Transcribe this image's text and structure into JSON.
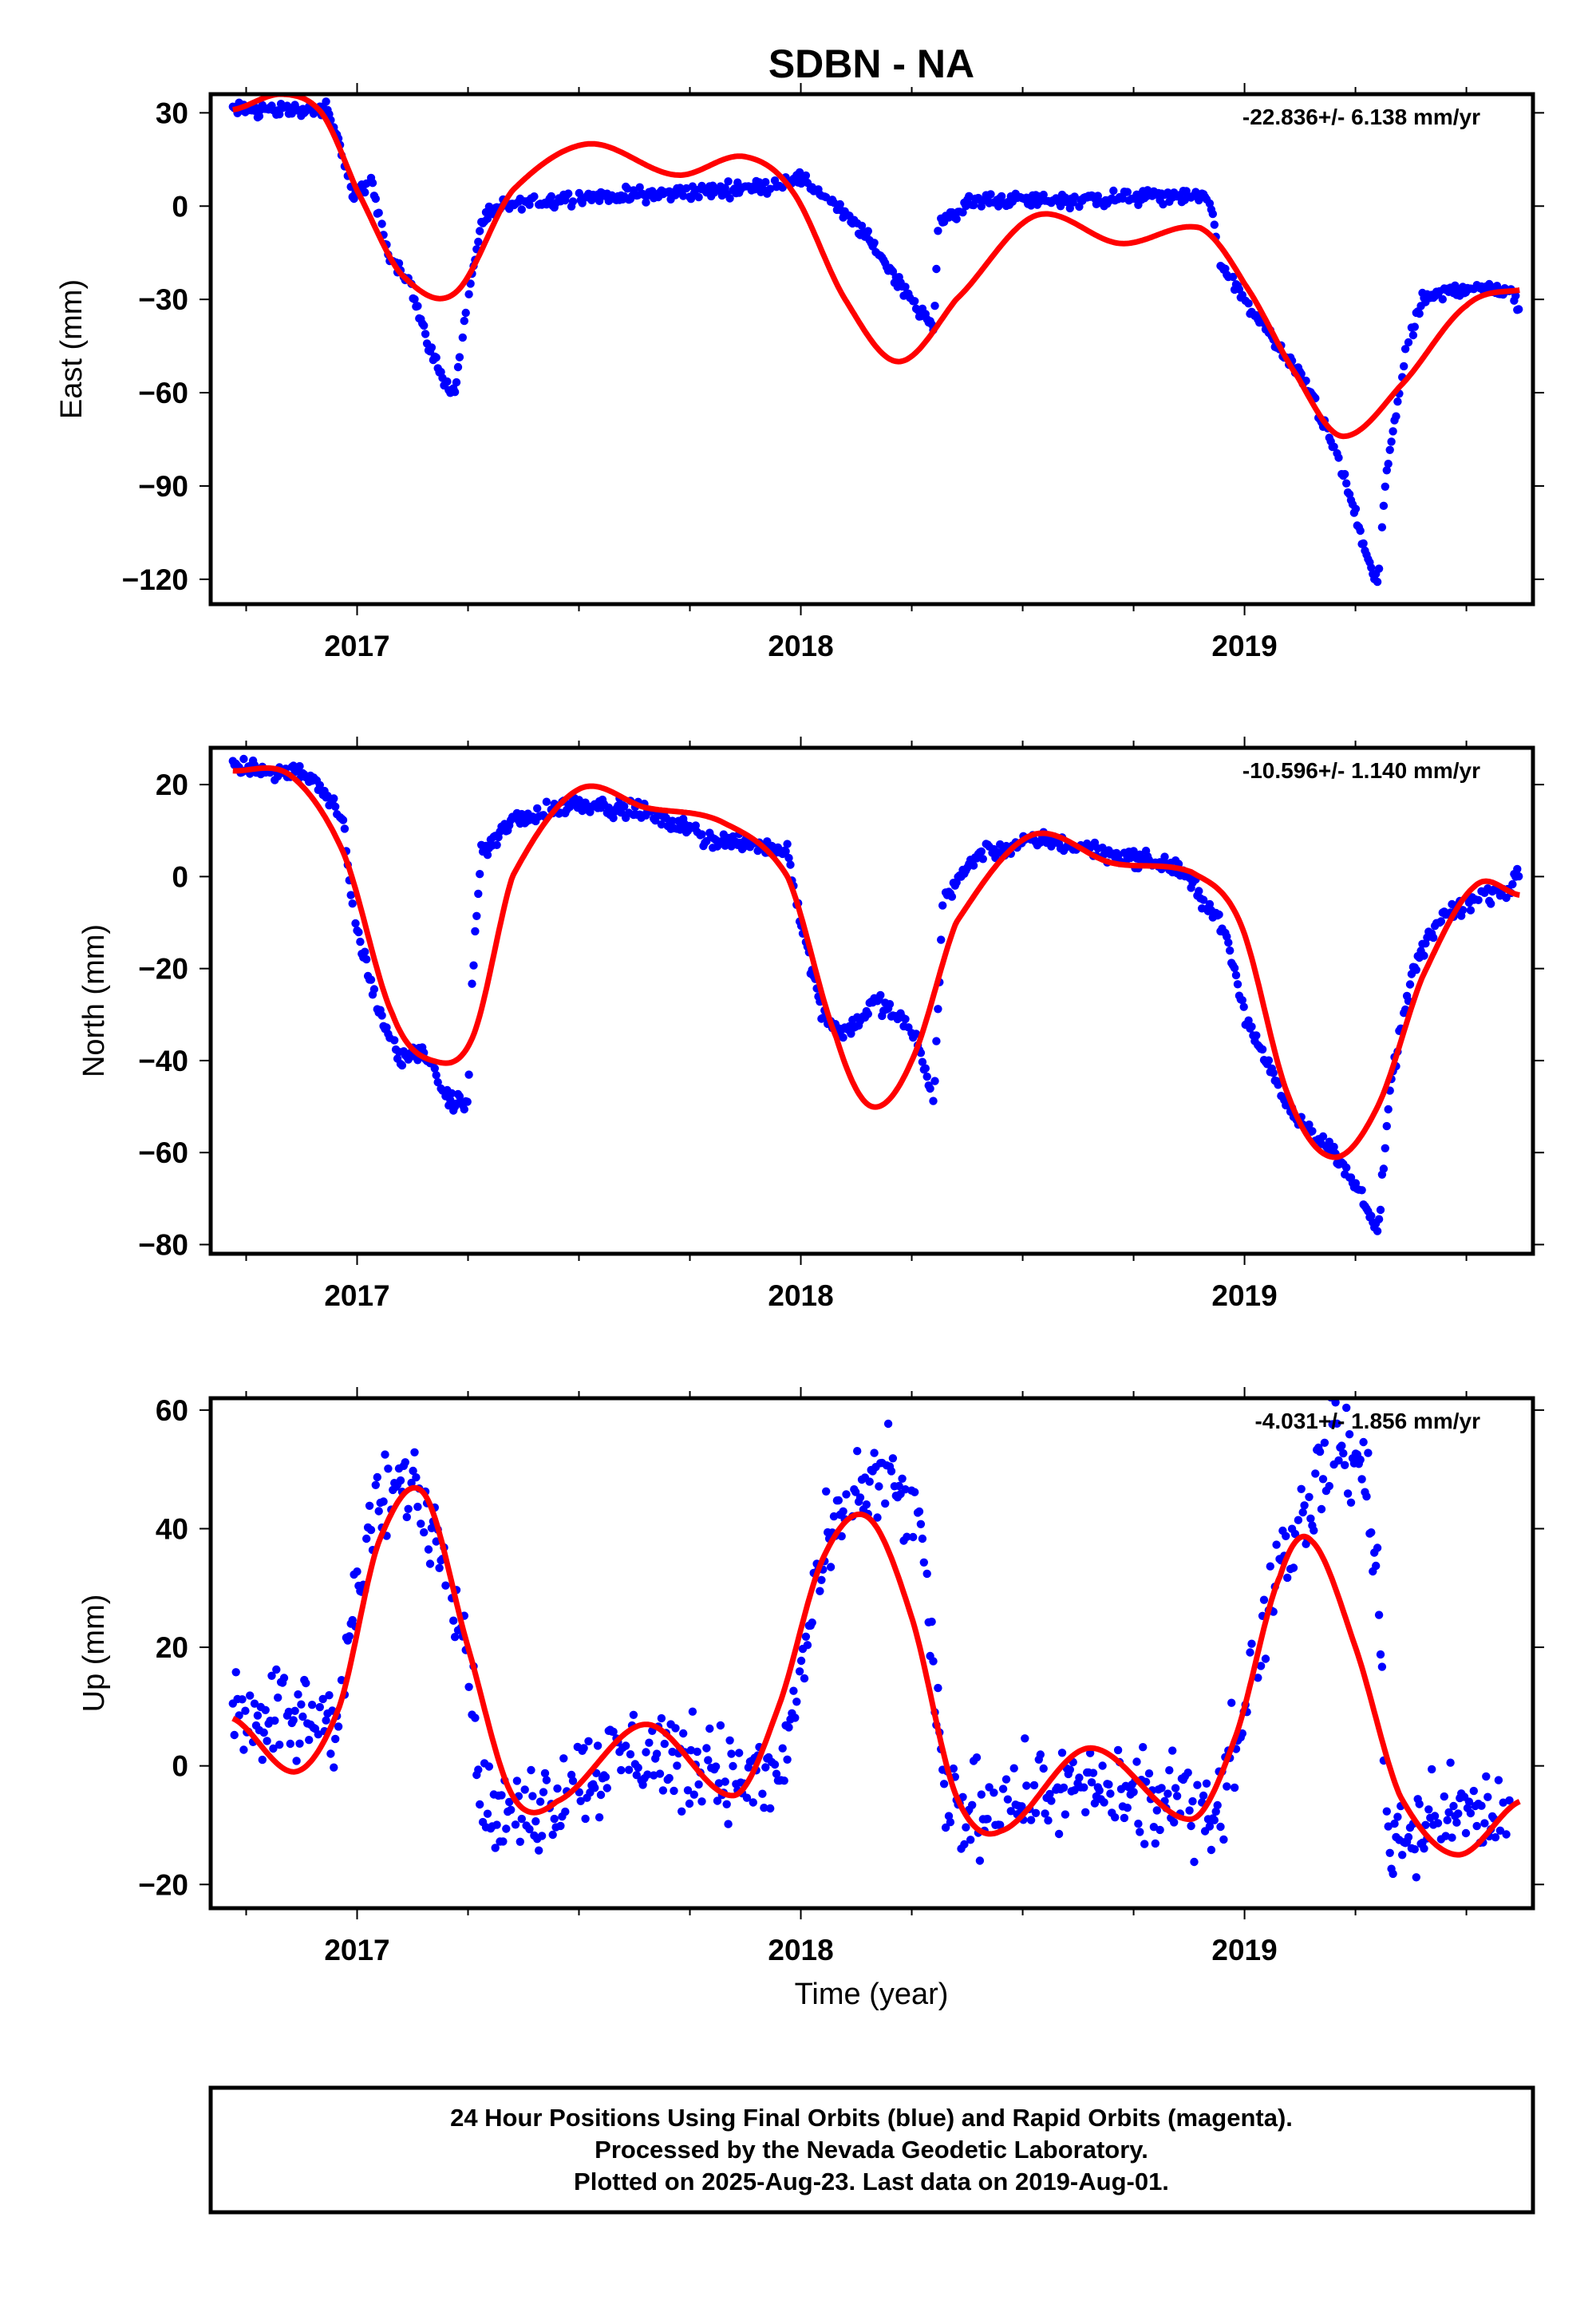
{
  "title": "SDBN - NA",
  "x_axis_label": "Time (year)",
  "colors": {
    "points": "#0000ff",
    "model": "#ff0000",
    "frame": "#000000"
  },
  "footer_lines": [
    "24 Hour Positions Using Final Orbits (blue) and Rapid Orbits (magenta).",
    "Processed by the Nevada Geodetic Laboratory.",
    "Plotted on 2025-Aug-23. Last data on 2019-Aug-01."
  ],
  "chart_data": [
    {
      "type": "scatter",
      "ylabel": "East (mm)",
      "rate_text": "-22.836+/- 6.138 mm/yr",
      "xlim": [
        2016.67,
        2019.65
      ],
      "ylim": [
        -128,
        36
      ],
      "yticks": [
        30,
        0,
        -30,
        -60,
        -90,
        -120
      ],
      "ytick_labels": [
        "30",
        "0",
        "−30",
        "−60",
        "−90",
        "−120"
      ],
      "xticks": [
        2017,
        2018,
        2019
      ],
      "xtick_labels": [
        "2017",
        "2018",
        "2019"
      ],
      "observations_knots": [
        [
          2016.72,
          31
        ],
        [
          2016.85,
          31
        ],
        [
          2016.93,
          31
        ],
        [
          2016.96,
          20
        ],
        [
          2016.99,
          3
        ],
        [
          2017.03,
          8
        ],
        [
          2017.07,
          -15
        ],
        [
          2017.12,
          -25
        ],
        [
          2017.15,
          -40
        ],
        [
          2017.19,
          -55
        ],
        [
          2017.22,
          -60
        ],
        [
          2017.25,
          -30
        ],
        [
          2017.28,
          -5
        ],
        [
          2017.33,
          0
        ],
        [
          2017.5,
          3
        ],
        [
          2017.7,
          4
        ],
        [
          2017.9,
          6
        ],
        [
          2018.0,
          9
        ],
        [
          2018.08,
          0
        ],
        [
          2018.15,
          -10
        ],
        [
          2018.2,
          -20
        ],
        [
          2018.25,
          -30
        ],
        [
          2018.3,
          -40
        ],
        [
          2018.31,
          -5
        ],
        [
          2018.4,
          2
        ],
        [
          2018.6,
          2
        ],
        [
          2018.8,
          3
        ],
        [
          2018.92,
          3
        ],
        [
          2018.95,
          -20
        ],
        [
          2019.05,
          -40
        ],
        [
          2019.15,
          -60
        ],
        [
          2019.22,
          -85
        ],
        [
          2019.27,
          -110
        ],
        [
          2019.3,
          -122
        ],
        [
          2019.32,
          -85
        ],
        [
          2019.36,
          -50
        ],
        [
          2019.4,
          -30
        ],
        [
          2019.5,
          -26
        ],
        [
          2019.6,
          -27
        ],
        [
          2019.62,
          -34
        ]
      ],
      "model_knots": [
        [
          2016.72,
          31
        ],
        [
          2016.83,
          36
        ],
        [
          2016.92,
          30
        ],
        [
          2017.0,
          5
        ],
        [
          2017.1,
          -22
        ],
        [
          2017.22,
          -28
        ],
        [
          2017.35,
          5
        ],
        [
          2017.52,
          20
        ],
        [
          2017.72,
          10
        ],
        [
          2017.87,
          16
        ],
        [
          2017.98,
          5
        ],
        [
          2018.1,
          -30
        ],
        [
          2018.22,
          -50
        ],
        [
          2018.35,
          -30
        ],
        [
          2018.53,
          -3
        ],
        [
          2018.72,
          -12
        ],
        [
          2018.9,
          -7
        ],
        [
          2019.0,
          -25
        ],
        [
          2019.12,
          -55
        ],
        [
          2019.22,
          -74
        ],
        [
          2019.35,
          -58
        ],
        [
          2019.5,
          -32
        ],
        [
          2019.62,
          -27
        ]
      ]
    },
    {
      "type": "scatter",
      "ylabel": "North (mm)",
      "rate_text": "-10.596+/- 1.140 mm/yr",
      "xlim": [
        2016.67,
        2019.65
      ],
      "ylim": [
        -82,
        28
      ],
      "yticks": [
        20,
        0,
        -20,
        -40,
        -60,
        -80
      ],
      "ytick_labels": [
        "20",
        "0",
        "−20",
        "−40",
        "−60",
        "−80"
      ],
      "xticks": [
        2017,
        2018,
        2019
      ],
      "xtick_labels": [
        "2017",
        "2018",
        "2019"
      ],
      "observations_knots": [
        [
          2016.72,
          24
        ],
        [
          2016.9,
          22
        ],
        [
          2016.97,
          12
        ],
        [
          2016.99,
          -8
        ],
        [
          2017.05,
          -30
        ],
        [
          2017.1,
          -40
        ],
        [
          2017.15,
          -38
        ],
        [
          2017.2,
          -48
        ],
        [
          2017.25,
          -50
        ],
        [
          2017.26,
          -20
        ],
        [
          2017.28,
          5
        ],
        [
          2017.35,
          12
        ],
        [
          2017.5,
          16
        ],
        [
          2017.65,
          14
        ],
        [
          2017.8,
          8
        ],
        [
          2017.97,
          6
        ],
        [
          2018.0,
          -10
        ],
        [
          2018.05,
          -30
        ],
        [
          2018.1,
          -34
        ],
        [
          2018.17,
          -27
        ],
        [
          2018.25,
          -33
        ],
        [
          2018.3,
          -48
        ],
        [
          2018.32,
          -5
        ],
        [
          2018.4,
          5
        ],
        [
          2018.55,
          8
        ],
        [
          2018.7,
          5
        ],
        [
          2018.85,
          2
        ],
        [
          2018.95,
          -10
        ],
        [
          2019.0,
          -30
        ],
        [
          2019.1,
          -50
        ],
        [
          2019.2,
          -60
        ],
        [
          2019.27,
          -70
        ],
        [
          2019.3,
          -78
        ],
        [
          2019.33,
          -45
        ],
        [
          2019.38,
          -20
        ],
        [
          2019.45,
          -8
        ],
        [
          2019.55,
          -4
        ],
        [
          2019.6,
          -3
        ],
        [
          2019.62,
          1
        ]
      ],
      "model_knots": [
        [
          2016.72,
          23
        ],
        [
          2016.85,
          22
        ],
        [
          2016.97,
          5
        ],
        [
          2017.08,
          -30
        ],
        [
          2017.17,
          -40
        ],
        [
          2017.26,
          -35
        ],
        [
          2017.35,
          0
        ],
        [
          2017.5,
          19
        ],
        [
          2017.65,
          15
        ],
        [
          2017.82,
          12
        ],
        [
          2017.97,
          0
        ],
        [
          2018.08,
          -35
        ],
        [
          2018.16,
          -50
        ],
        [
          2018.25,
          -40
        ],
        [
          2018.35,
          -10
        ],
        [
          2018.52,
          9
        ],
        [
          2018.7,
          3
        ],
        [
          2018.88,
          1
        ],
        [
          2018.99,
          -10
        ],
        [
          2019.1,
          -48
        ],
        [
          2019.2,
          -61
        ],
        [
          2019.3,
          -50
        ],
        [
          2019.4,
          -22
        ],
        [
          2019.52,
          -2
        ],
        [
          2019.62,
          -4
        ]
      ]
    },
    {
      "type": "scatter",
      "ylabel": "Up (mm)",
      "rate_text": "-4.031+/- 1.856 mm/yr",
      "xlim": [
        2016.67,
        2019.65
      ],
      "ylim": [
        -24,
        62
      ],
      "yticks": [
        60,
        40,
        20,
        0,
        -20
      ],
      "ytick_labels": [
        "60",
        "40",
        "20",
        "0",
        "−20"
      ],
      "xticks": [
        2017,
        2018,
        2019
      ],
      "xtick_labels": [
        "2017",
        "2018",
        "2019"
      ],
      "observations_knots": [
        [
          2016.72,
          10
        ],
        [
          2016.85,
          8
        ],
        [
          2016.95,
          8
        ],
        [
          2017.03,
          40
        ],
        [
          2017.1,
          48
        ],
        [
          2017.15,
          45
        ],
        [
          2017.2,
          35
        ],
        [
          2017.25,
          20
        ],
        [
          2017.28,
          -5
        ],
        [
          2017.33,
          -10
        ],
        [
          2017.45,
          -5
        ],
        [
          2017.6,
          2
        ],
        [
          2017.7,
          2
        ],
        [
          2017.85,
          -2
        ],
        [
          2017.95,
          -3
        ],
        [
          2018.0,
          15
        ],
        [
          2018.05,
          35
        ],
        [
          2018.12,
          45
        ],
        [
          2018.17,
          50
        ],
        [
          2018.23,
          45
        ],
        [
          2018.28,
          35
        ],
        [
          2018.32,
          -5
        ],
        [
          2018.35,
          -8
        ],
        [
          2018.5,
          -5
        ],
        [
          2018.65,
          -3
        ],
        [
          2018.8,
          -7
        ],
        [
          2018.95,
          -5
        ],
        [
          2019.0,
          10
        ],
        [
          2019.08,
          35
        ],
        [
          2019.15,
          45
        ],
        [
          2019.2,
          55
        ],
        [
          2019.27,
          50
        ],
        [
          2019.3,
          35
        ],
        [
          2019.32,
          -12
        ],
        [
          2019.4,
          -10
        ],
        [
          2019.5,
          -8
        ],
        [
          2019.6,
          -8
        ]
      ],
      "model_knots": [
        [
          2016.72,
          8
        ],
        [
          2016.86,
          -1
        ],
        [
          2016.96,
          10
        ],
        [
          2017.05,
          38
        ],
        [
          2017.15,
          46
        ],
        [
          2017.25,
          20
        ],
        [
          2017.35,
          -5
        ],
        [
          2017.45,
          -6
        ],
        [
          2017.65,
          7
        ],
        [
          2017.85,
          -5
        ],
        [
          2017.95,
          10
        ],
        [
          2018.05,
          35
        ],
        [
          2018.15,
          42
        ],
        [
          2018.25,
          25
        ],
        [
          2018.35,
          -5
        ],
        [
          2018.45,
          -11
        ],
        [
          2018.65,
          3
        ],
        [
          2018.88,
          -9
        ],
        [
          2018.98,
          5
        ],
        [
          2019.08,
          32
        ],
        [
          2019.15,
          38
        ],
        [
          2019.25,
          20
        ],
        [
          2019.35,
          -5
        ],
        [
          2019.48,
          -15
        ],
        [
          2019.62,
          -6
        ]
      ]
    }
  ]
}
